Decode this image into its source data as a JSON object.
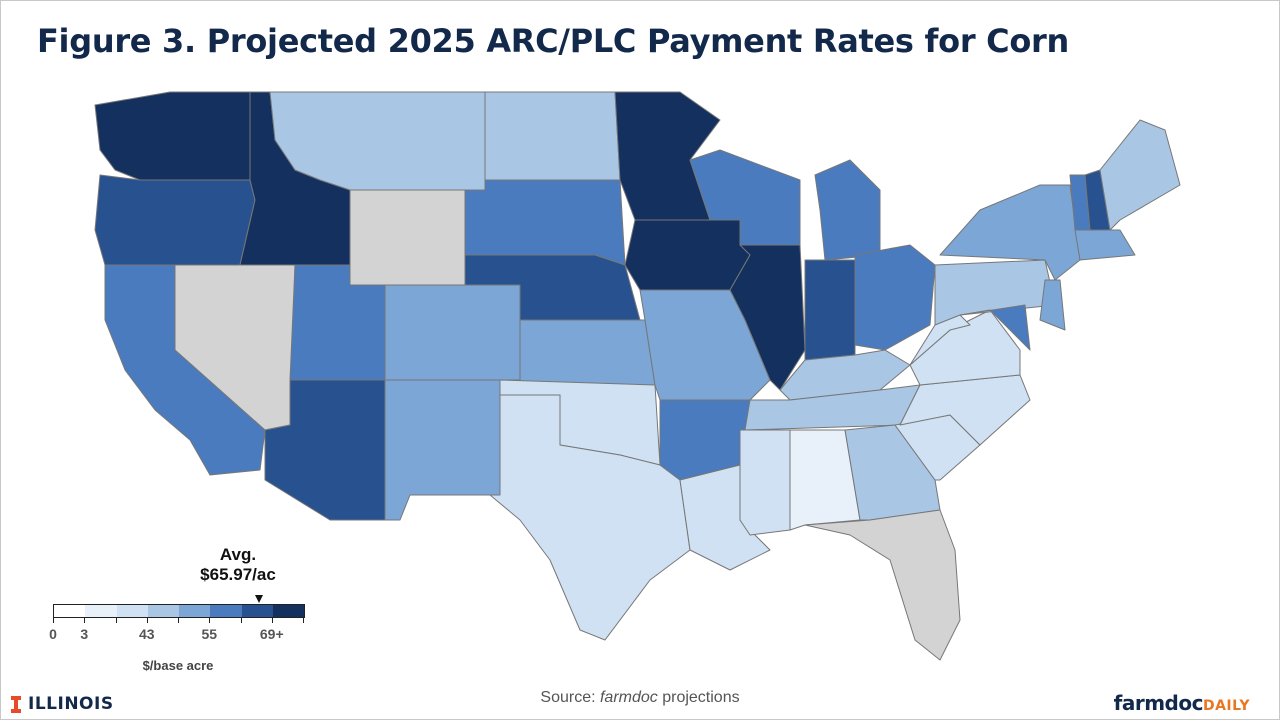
{
  "title": "Figure 3. Projected 2025 ARC/PLC Payment Rates for Corn",
  "legend": {
    "avg_label_line1": "Avg.",
    "avg_label_line2": "$65.97/ac",
    "avg_value": 65.97,
    "bins": [
      "#ffffff",
      "#e8f0fa",
      "#cfe1f2",
      "#a9c6e5",
      "#7ba6d6",
      "#4a7bbf",
      "#27528f",
      "#13305f"
    ],
    "no_data_color": "#d3d3d3",
    "tick_labels": [
      {
        "label": "0",
        "pos": 0
      },
      {
        "label": "3",
        "pos": 1
      },
      {
        "label": "43",
        "pos": 3
      },
      {
        "label": "55",
        "pos": 5
      },
      {
        "label": "69+",
        "pos": 7
      }
    ],
    "unit": "$/base acre"
  },
  "footer": {
    "left_logo": "ILLINOIS",
    "source_prefix": "Source: ",
    "source_italic": "farmdoc",
    "source_suffix": " projections",
    "right_logo_main": "farmdoc",
    "right_logo_accent": "DAILY"
  },
  "chart_data": {
    "type": "choropleth",
    "title": "Figure 3. Projected 2025 ARC/PLC Payment Rates for Corn",
    "unit": "$/base acre",
    "bin_edges": [
      0,
      3,
      43,
      55,
      69
    ],
    "average": 65.97,
    "regions": [
      {
        "name": "Washington",
        "bin": 7
      },
      {
        "name": "Oregon",
        "bin": 6
      },
      {
        "name": "California",
        "bin": 5
      },
      {
        "name": "Nevada",
        "bin": -1
      },
      {
        "name": "Idaho",
        "bin": 7
      },
      {
        "name": "Montana",
        "bin": 3
      },
      {
        "name": "Wyoming",
        "bin": -1
      },
      {
        "name": "Utah",
        "bin": 5
      },
      {
        "name": "Arizona",
        "bin": 6
      },
      {
        "name": "Colorado",
        "bin": 4
      },
      {
        "name": "New Mexico",
        "bin": 4
      },
      {
        "name": "North Dakota",
        "bin": 3
      },
      {
        "name": "South Dakota",
        "bin": 5
      },
      {
        "name": "Nebraska",
        "bin": 6
      },
      {
        "name": "Kansas",
        "bin": 4
      },
      {
        "name": "Oklahoma",
        "bin": 2
      },
      {
        "name": "Texas",
        "bin": 2
      },
      {
        "name": "Minnesota",
        "bin": 7
      },
      {
        "name": "Iowa",
        "bin": 7
      },
      {
        "name": "Missouri",
        "bin": 4
      },
      {
        "name": "Arkansas",
        "bin": 5
      },
      {
        "name": "Louisiana",
        "bin": 2
      },
      {
        "name": "Wisconsin",
        "bin": 5
      },
      {
        "name": "Illinois",
        "bin": 7
      },
      {
        "name": "Michigan",
        "bin": 5
      },
      {
        "name": "Indiana",
        "bin": 6
      },
      {
        "name": "Ohio",
        "bin": 5
      },
      {
        "name": "Kentucky",
        "bin": 3
      },
      {
        "name": "Tennessee",
        "bin": 3
      },
      {
        "name": "Mississippi",
        "bin": 2
      },
      {
        "name": "Alabama",
        "bin": 1
      },
      {
        "name": "Georgia",
        "bin": 3
      },
      {
        "name": "Florida",
        "bin": -1
      },
      {
        "name": "South Carolina",
        "bin": 2
      },
      {
        "name": "North Carolina",
        "bin": 2
      },
      {
        "name": "Virginia",
        "bin": 2
      },
      {
        "name": "West Virginia",
        "bin": 2
      },
      {
        "name": "Pennsylvania",
        "bin": 3
      },
      {
        "name": "New York",
        "bin": 4
      },
      {
        "name": "Vermont",
        "bin": 5
      },
      {
        "name": "New Hampshire",
        "bin": 6
      },
      {
        "name": "Maine",
        "bin": 3
      },
      {
        "name": "Massachusetts",
        "bin": 4
      },
      {
        "name": "Maryland",
        "bin": 5
      },
      {
        "name": "New Jersey",
        "bin": 4
      }
    ]
  }
}
